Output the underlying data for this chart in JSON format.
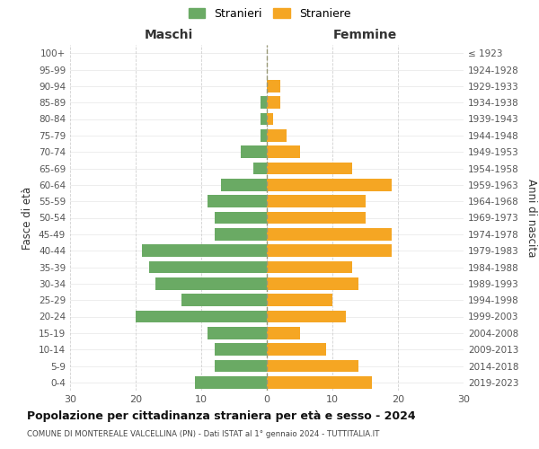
{
  "age_groups": [
    "0-4",
    "5-9",
    "10-14",
    "15-19",
    "20-24",
    "25-29",
    "30-34",
    "35-39",
    "40-44",
    "45-49",
    "50-54",
    "55-59",
    "60-64",
    "65-69",
    "70-74",
    "75-79",
    "80-84",
    "85-89",
    "90-94",
    "95-99",
    "100+"
  ],
  "birth_years": [
    "2019-2023",
    "2014-2018",
    "2009-2013",
    "2004-2008",
    "1999-2003",
    "1994-1998",
    "1989-1993",
    "1984-1988",
    "1979-1983",
    "1974-1978",
    "1969-1973",
    "1964-1968",
    "1959-1963",
    "1954-1958",
    "1949-1953",
    "1944-1948",
    "1939-1943",
    "1934-1938",
    "1929-1933",
    "1924-1928",
    "≤ 1923"
  ],
  "maschi": [
    11,
    8,
    8,
    9,
    20,
    13,
    17,
    18,
    19,
    8,
    8,
    9,
    7,
    2,
    4,
    1,
    1,
    1,
    0,
    0,
    0
  ],
  "femmine": [
    16,
    14,
    9,
    5,
    12,
    10,
    14,
    13,
    19,
    19,
    15,
    15,
    19,
    13,
    5,
    3,
    1,
    2,
    2,
    0,
    0
  ],
  "color_maschi": "#6aaa64",
  "color_femmine": "#f5a623",
  "title": "Popolazione per cittadinanza straniera per età e sesso - 2024",
  "subtitle": "COMUNE DI MONTEREALE VALCELLINA (PN) - Dati ISTAT al 1° gennaio 2024 - TUTTITALIA.IT",
  "xlabel_left": "Maschi",
  "xlabel_right": "Femmine",
  "ylabel_left": "Fasce di età",
  "ylabel_right": "Anni di nascita",
  "legend_stranieri": "Stranieri",
  "legend_straniere": "Straniere",
  "xlim": 30,
  "background_color": "#ffffff",
  "grid_color": "#cccccc",
  "bar_height": 0.75
}
